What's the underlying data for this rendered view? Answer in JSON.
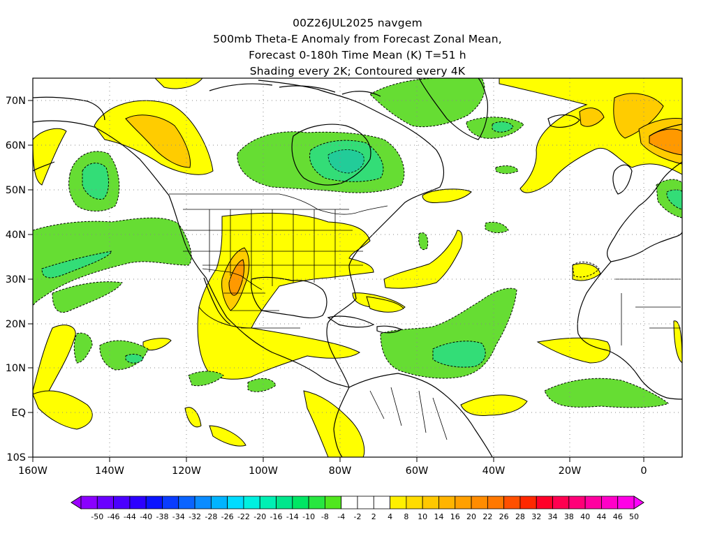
{
  "title": {
    "line1": "00Z26JUL2025 navgem",
    "line2": "500mb Theta-E Anomaly from Forecast Zonal Mean,",
    "line3": "Forecast 0-180h Time Mean (K) T=51 h",
    "line4": "Shading every 2K; Contoured every 4K"
  },
  "axes": {
    "lat_labels": [
      "70N",
      "60N",
      "50N",
      "40N",
      "30N",
      "20N",
      "10N",
      "EQ",
      "10S"
    ],
    "lon_labels": [
      "160W",
      "140W",
      "120W",
      "100W",
      "80W",
      "60W",
      "40W",
      "20W",
      "0"
    ]
  },
  "colorbar": {
    "labels": [
      "-50",
      "-46",
      "-44",
      "-40",
      "-38",
      "-34",
      "-32",
      "-28",
      "-26",
      "-22",
      "-20",
      "-16",
      "-14",
      "-10",
      "-8",
      "-4",
      "-2",
      "2",
      "4",
      "8",
      "10",
      "14",
      "16",
      "20",
      "22",
      "26",
      "28",
      "32",
      "34",
      "38",
      "40",
      "44",
      "46",
      "50"
    ],
    "colors": [
      "#8a00ff",
      "#6a00ff",
      "#4b00ff",
      "#2c00ff",
      "#0a14ff",
      "#0a3cff",
      "#0a64ff",
      "#0a8cff",
      "#00b4ff",
      "#00dcff",
      "#00f0e0",
      "#00f0b4",
      "#00e68c",
      "#00e664",
      "#28e640",
      "#50e61e",
      "#ffffff",
      "#ffffff",
      "#ffffff",
      "#fff000",
      "#ffdc00",
      "#ffc800",
      "#ffb400",
      "#ffa000",
      "#ff8c00",
      "#ff7800",
      "#ff5000",
      "#ff2800",
      "#ff0028",
      "#ff0050",
      "#ff0078",
      "#ff00a0",
      "#ff00c8",
      "#ff00e6"
    ]
  },
  "colors": {
    "positive_light": "#ffff00",
    "positive_mid": "#ffcc00",
    "positive_strong": "#ff9900",
    "negative_light": "#66dd33",
    "negative_mid": "#33dd77",
    "negative_strong": "#22cc99"
  }
}
